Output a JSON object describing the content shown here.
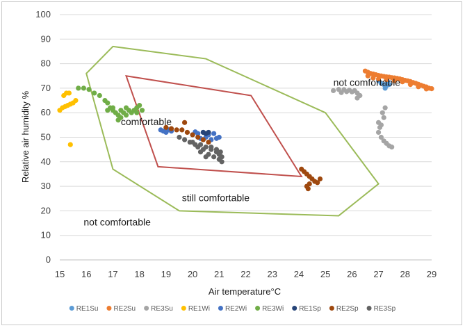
{
  "chart_data": {
    "type": "scatter",
    "xlabel": "Air temperature°C",
    "ylabel": "Relative air humidity %",
    "xlim": [
      15,
      29
    ],
    "ylim": [
      0,
      100
    ],
    "x_ticks": [
      "15",
      "16",
      "17",
      "18",
      "19",
      "20",
      "21",
      "22",
      "23",
      "24",
      "25",
      "26",
      "27",
      "28",
      "29"
    ],
    "y_ticks": [
      "0",
      "10",
      "20",
      "30",
      "40",
      "50",
      "60",
      "70",
      "80",
      "90",
      "100"
    ],
    "grid": "horizontal",
    "legend_position": "bottom",
    "zones": [
      {
        "name": "comfortable",
        "color": "#c0504d",
        "points": [
          [
            17.5,
            75
          ],
          [
            22.2,
            67
          ],
          [
            24.1,
            34
          ],
          [
            18.7,
            38
          ]
        ]
      },
      {
        "name": "still comfortable",
        "color": "#9bbb59",
        "points": [
          [
            17,
            87
          ],
          [
            20.5,
            82
          ],
          [
            25,
            60
          ],
          [
            27,
            31
          ],
          [
            25.5,
            18
          ],
          [
            19.5,
            20
          ],
          [
            17,
            37
          ],
          [
            16,
            76
          ]
        ]
      }
    ],
    "annotations": [
      {
        "text": "comfortable",
        "x": 17.3,
        "y": 55
      },
      {
        "text": "still comfortable",
        "x": 19.6,
        "y": 24
      },
      {
        "text": "not comfortable",
        "x": 15.9,
        "y": 14
      },
      {
        "text": "not comfortable",
        "x": 25.3,
        "y": 71
      }
    ],
    "series": [
      {
        "name": "RE1Su",
        "color": "#5b9bd5",
        "points": [
          [
            27.0,
            73
          ],
          [
            27.1,
            72
          ],
          [
            27.2,
            71.5
          ],
          [
            27.3,
            71
          ],
          [
            27.4,
            71.5
          ],
          [
            27.25,
            70
          ],
          [
            27.35,
            72.5
          ]
        ]
      },
      {
        "name": "RE2Su",
        "color": "#ed7d31",
        "points": [
          [
            26.5,
            77
          ],
          [
            26.6,
            76.5
          ],
          [
            26.7,
            76
          ],
          [
            26.8,
            75.8
          ],
          [
            26.9,
            75.5
          ],
          [
            27.0,
            75.2
          ],
          [
            27.1,
            75
          ],
          [
            27.2,
            74.8
          ],
          [
            27.3,
            74.6
          ],
          [
            27.4,
            74.5
          ],
          [
            27.5,
            74.3
          ],
          [
            27.6,
            74.2
          ],
          [
            27.7,
            74
          ],
          [
            27.8,
            73.8
          ],
          [
            27.9,
            73.5
          ],
          [
            28.0,
            73.2
          ],
          [
            28.1,
            73
          ],
          [
            28.2,
            72.7
          ],
          [
            28.3,
            72.3
          ],
          [
            28.4,
            72
          ],
          [
            28.5,
            71.6
          ],
          [
            28.6,
            71.2
          ],
          [
            28.7,
            70.8
          ],
          [
            28.8,
            70.5
          ],
          [
            28.9,
            70
          ],
          [
            29.0,
            69.8
          ],
          [
            26.6,
            75
          ],
          [
            26.8,
            74.2
          ],
          [
            27.0,
            73.8
          ],
          [
            27.3,
            73.5
          ],
          [
            27.6,
            73
          ],
          [
            27.9,
            72.6
          ],
          [
            28.2,
            71.5
          ],
          [
            28.5,
            70.6
          ],
          [
            28.8,
            69.7
          ]
        ]
      },
      {
        "name": "RE3Su",
        "color": "#a5a5a5",
        "points": [
          [
            25.3,
            69
          ],
          [
            25.5,
            69.5
          ],
          [
            25.7,
            69.4
          ],
          [
            25.9,
            69.2
          ],
          [
            26.1,
            69
          ],
          [
            26.2,
            68
          ],
          [
            26.3,
            67
          ],
          [
            26.2,
            66
          ],
          [
            26.0,
            68.5
          ],
          [
            25.8,
            68.6
          ],
          [
            25.6,
            68.2
          ],
          [
            27.0,
            56
          ],
          [
            27.05,
            54
          ],
          [
            27.0,
            52
          ],
          [
            27.1,
            50
          ],
          [
            27.2,
            48.5
          ],
          [
            27.3,
            47.5
          ],
          [
            27.4,
            46.5
          ],
          [
            27.5,
            46
          ],
          [
            27.15,
            60
          ],
          [
            27.2,
            58
          ],
          [
            27.25,
            62
          ],
          [
            27.1,
            55
          ]
        ]
      },
      {
        "name": "RE1Wi",
        "color": "#ffc000",
        "points": [
          [
            15.0,
            61
          ],
          [
            15.1,
            62
          ],
          [
            15.2,
            62.5
          ],
          [
            15.3,
            63
          ],
          [
            15.4,
            63.5
          ],
          [
            15.5,
            64
          ],
          [
            15.6,
            65
          ],
          [
            15.15,
            67
          ],
          [
            15.25,
            68
          ],
          [
            15.35,
            68
          ],
          [
            15.4,
            47
          ]
        ]
      },
      {
        "name": "RE2Wi",
        "color": "#4472c4",
        "points": [
          [
            18.8,
            53
          ],
          [
            18.9,
            52.5
          ],
          [
            19.0,
            52
          ],
          [
            19.1,
            53
          ],
          [
            19.2,
            52.5
          ],
          [
            20.0,
            51
          ],
          [
            20.2,
            51.5
          ],
          [
            20.4,
            52
          ],
          [
            20.6,
            51
          ],
          [
            20.8,
            51.5
          ],
          [
            21.0,
            50
          ],
          [
            20.5,
            50
          ],
          [
            20.3,
            49.5
          ],
          [
            20.7,
            49
          ],
          [
            20.1,
            52.2
          ],
          [
            20.9,
            49.5
          ]
        ]
      },
      {
        "name": "RE3Wi",
        "color": "#70ad47",
        "points": [
          [
            15.7,
            70
          ],
          [
            15.9,
            70
          ],
          [
            16.1,
            69.5
          ],
          [
            16.3,
            68
          ],
          [
            16.5,
            67
          ],
          [
            16.7,
            65
          ],
          [
            16.8,
            64
          ],
          [
            16.9,
            62
          ],
          [
            17.0,
            61
          ],
          [
            17.1,
            60
          ],
          [
            17.2,
            59
          ],
          [
            17.3,
            61
          ],
          [
            17.4,
            60
          ],
          [
            17.5,
            62
          ],
          [
            17.6,
            61
          ],
          [
            17.7,
            60
          ],
          [
            17.8,
            61
          ],
          [
            17.9,
            62
          ],
          [
            18.0,
            63
          ],
          [
            18.1,
            61
          ],
          [
            17.2,
            57
          ],
          [
            17.3,
            58
          ],
          [
            17.0,
            62
          ],
          [
            16.8,
            61
          ],
          [
            17.5,
            59
          ],
          [
            17.9,
            60
          ]
        ]
      },
      {
        "name": "RE1Sp",
        "color": "#264478",
        "points": [
          [
            20.4,
            52
          ],
          [
            20.5,
            51.5
          ],
          [
            20.6,
            52
          ]
        ]
      },
      {
        "name": "RE2Sp",
        "color": "#9e480e",
        "points": [
          [
            19.0,
            54
          ],
          [
            19.2,
            53.5
          ],
          [
            19.4,
            53
          ],
          [
            19.6,
            53
          ],
          [
            19.8,
            52
          ],
          [
            20.0,
            51
          ],
          [
            20.2,
            50
          ],
          [
            20.4,
            49
          ],
          [
            20.6,
            48
          ],
          [
            19.7,
            56
          ],
          [
            24.1,
            37
          ],
          [
            24.2,
            36
          ],
          [
            24.3,
            35
          ],
          [
            24.4,
            34
          ],
          [
            24.5,
            33
          ],
          [
            24.6,
            32
          ],
          [
            24.7,
            31.5
          ],
          [
            24.8,
            33
          ],
          [
            24.3,
            30
          ],
          [
            24.35,
            29
          ],
          [
            24.4,
            31
          ]
        ]
      },
      {
        "name": "RE3Sp",
        "color": "#636363",
        "points": [
          [
            19.5,
            50
          ],
          [
            19.7,
            49
          ],
          [
            19.9,
            48
          ],
          [
            20.1,
            47
          ],
          [
            20.3,
            47
          ],
          [
            20.5,
            46
          ],
          [
            20.7,
            45
          ],
          [
            20.9,
            44
          ],
          [
            21.0,
            43
          ],
          [
            21.1,
            42
          ],
          [
            21.0,
            41
          ],
          [
            20.8,
            42
          ],
          [
            20.6,
            43
          ],
          [
            20.4,
            45
          ],
          [
            20.2,
            46
          ],
          [
            20.0,
            48
          ],
          [
            20.7,
            46
          ],
          [
            20.9,
            45
          ],
          [
            21.1,
            40
          ],
          [
            20.5,
            42
          ],
          [
            20.3,
            44
          ],
          [
            21.05,
            44
          ]
        ]
      }
    ]
  }
}
